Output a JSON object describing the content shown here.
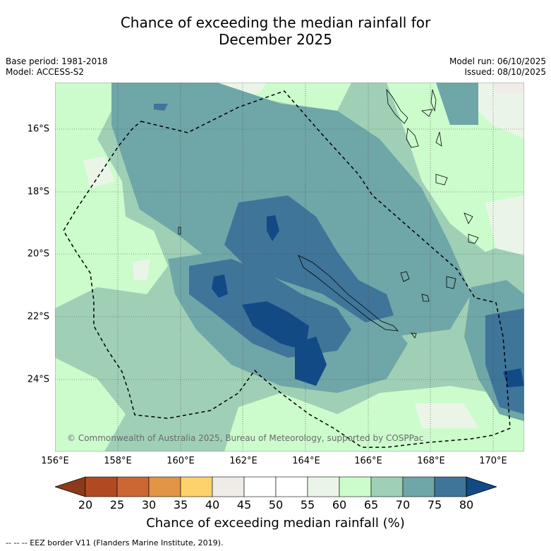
{
  "title_line1": "Chance of exceeding the median rainfall for",
  "title_line2": "December 2025",
  "base_period": "Base period: 1981-2018",
  "model": "Model: ACCESS-S2",
  "model_run": "Model run: 06/10/2025",
  "issued": "Issued: 08/10/2025",
  "copyright": "© Commonwealth of Australia 2025, Bureau of Meteorology, supported by COSPPac",
  "lat_labels": [
    "16°S",
    "18°S",
    "20°S",
    "22°S",
    "24°S"
  ],
  "lon_labels": [
    "156°E",
    "158°E",
    "160°E",
    "162°E",
    "164°E",
    "166°E",
    "168°E",
    "170°E"
  ],
  "colorbar": {
    "ticks": [
      "20",
      "25",
      "30",
      "35",
      "40",
      "45",
      "50",
      "55",
      "60",
      "65",
      "70",
      "75",
      "80"
    ],
    "colors": [
      "#8c3a1a",
      "#b14a22",
      "#cc6633",
      "#e29447",
      "#fdd16b",
      "#efebe6",
      "#ffffff",
      "#ffffff",
      "#eaf5e8",
      "#ccfccc",
      "#9fd0b6",
      "#6fa6a8",
      "#3f7599",
      "#124a86"
    ],
    "title": "Chance of exceeding median rainfall (%)"
  },
  "footer": "--  --  -- EEZ border V11 (Flanders Marine Institute, 2019)."
}
